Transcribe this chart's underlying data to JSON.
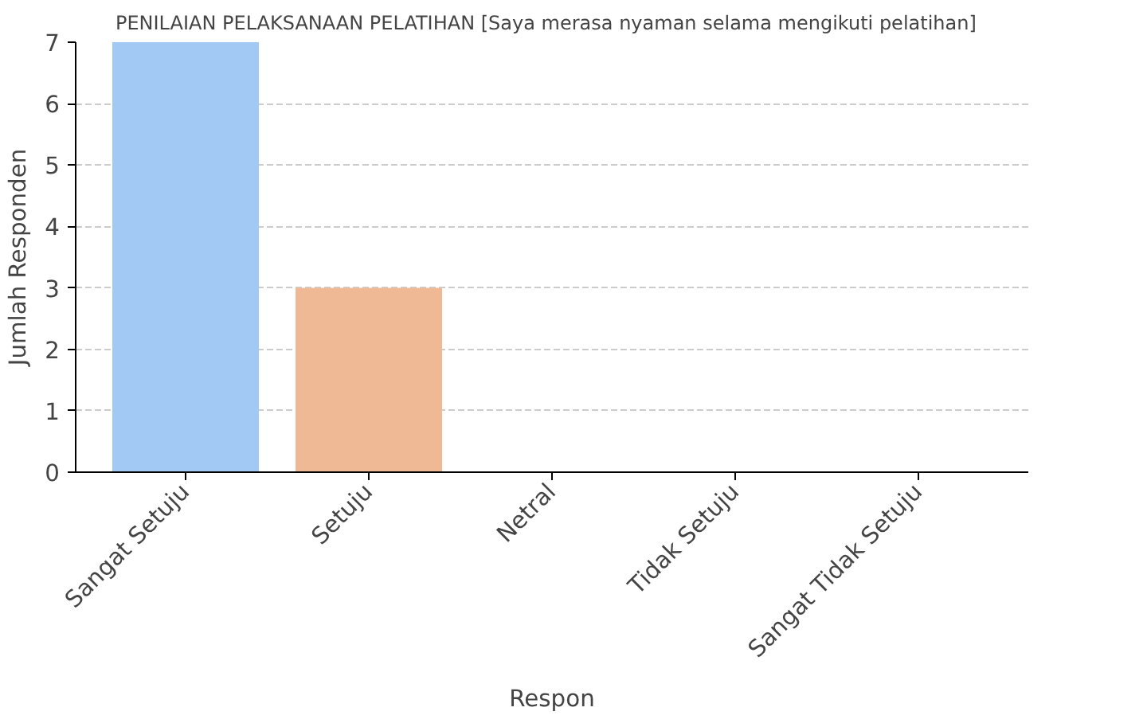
{
  "chart_data": {
    "type": "bar",
    "title": "PENILAIAN PELAKSANAAN PELATIHAN   [Saya merasa nyaman selama mengikuti pelatihan]",
    "xlabel": "Respon",
    "ylabel": "Jumlah Responden",
    "categories": [
      "Sangat Setuju",
      "Setuju",
      "Netral",
      "Tidak Setuju",
      "Sangat Tidak Setuju"
    ],
    "values": [
      7,
      3,
      0,
      0,
      0
    ],
    "colors": [
      "#a1c9f4",
      "#f0b995",
      "#8de5a1",
      "#ff9f9b",
      "#d0bbff"
    ],
    "ylim": [
      0,
      7
    ],
    "yticks": [
      0,
      1,
      2,
      3,
      4,
      5,
      6,
      7
    ],
    "grid": "y"
  }
}
